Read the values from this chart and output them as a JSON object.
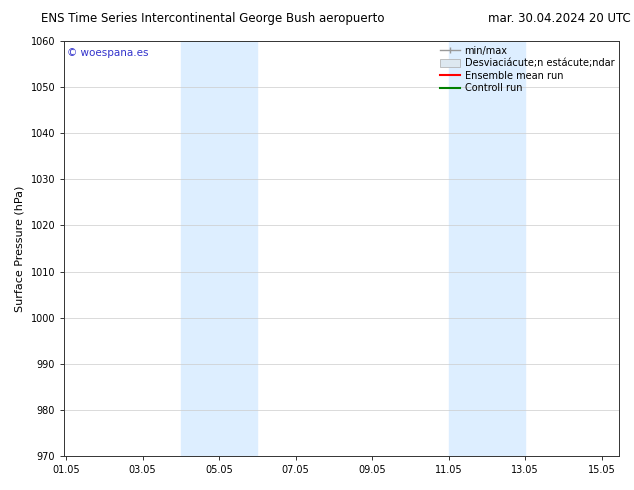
{
  "title_left": "ENS Time Series Intercontinental George Bush aeropuerto",
  "title_right": "mar. 30.04.2024 20 UTC",
  "ylabel": "Surface Pressure (hPa)",
  "xlim_min": 1.0,
  "xlim_max": 15.5,
  "ylim_min": 970,
  "ylim_max": 1060,
  "xtick_positions": [
    1.05,
    3.05,
    5.05,
    7.05,
    9.05,
    11.05,
    13.05,
    15.05
  ],
  "xtick_labels": [
    "01.05",
    "03.05",
    "05.05",
    "07.05",
    "09.05",
    "11.05",
    "13.05",
    "15.05"
  ],
  "ytick_positions": [
    970,
    980,
    990,
    1000,
    1010,
    1020,
    1030,
    1040,
    1050,
    1060
  ],
  "shaded_regions": [
    {
      "xmin": 4.05,
      "xmax": 5.05,
      "color": "#ddeeff"
    },
    {
      "xmin": 5.05,
      "xmax": 6.05,
      "color": "#ddeeff"
    },
    {
      "xmin": 11.05,
      "xmax": 12.05,
      "color": "#ddeeff"
    },
    {
      "xmin": 12.05,
      "xmax": 13.05,
      "color": "#ddeeff"
    }
  ],
  "watermark_text": "© woespana.es",
  "watermark_color": "#3333cc",
  "bg_color": "#ffffff",
  "plot_bg_color": "#ffffff",
  "grid_color": "#cccccc",
  "title_fontsize": 8.5,
  "label_fontsize": 8,
  "tick_fontsize": 7,
  "legend_fontsize": 7
}
